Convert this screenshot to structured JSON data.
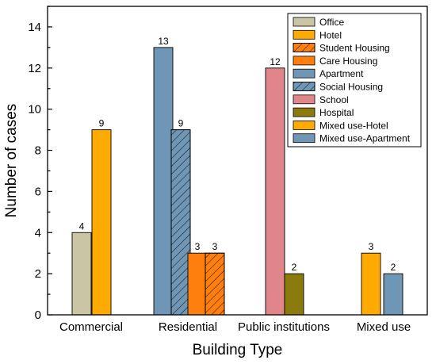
{
  "chart_data": {
    "type": "bar",
    "xlabel": "Building Type",
    "ylabel": "Number of cases",
    "ylim": [
      0,
      15
    ],
    "yticks": [
      0,
      2,
      4,
      6,
      8,
      10,
      12,
      14
    ],
    "grid": false,
    "legend_position": "top-right",
    "categories": [
      "Commercial",
      "Residential",
      "Public institutions",
      "Mixed use"
    ],
    "series": [
      {
        "name": "Office",
        "color": "#c9c5a5",
        "pattern": "solid",
        "points": [
          {
            "category": "Commercial",
            "value": 4
          }
        ]
      },
      {
        "name": "Hotel",
        "color": "#ffaa00",
        "pattern": "solid",
        "points": [
          {
            "category": "Commercial",
            "value": 9
          }
        ]
      },
      {
        "name": "Student Housing",
        "color": "#ff7f0e",
        "pattern": "hatch",
        "points": [
          {
            "category": "Residential",
            "value": 3
          }
        ]
      },
      {
        "name": "Care Housing",
        "color": "#ff7f0e",
        "pattern": "solid",
        "points": [
          {
            "category": "Residential",
            "value": 3
          }
        ]
      },
      {
        "name": "Apartment",
        "color": "#6f96b4",
        "pattern": "solid",
        "points": [
          {
            "category": "Residential",
            "value": 13
          }
        ]
      },
      {
        "name": "Social Housing",
        "color": "#6f96b4",
        "pattern": "hatch",
        "points": [
          {
            "category": "Residential",
            "value": 9
          }
        ]
      },
      {
        "name": "School",
        "color": "#e0868b",
        "pattern": "solid",
        "points": [
          {
            "category": "Public institutions",
            "value": 12
          }
        ]
      },
      {
        "name": "Hospital",
        "color": "#8b7b0f",
        "pattern": "solid",
        "points": [
          {
            "category": "Public institutions",
            "value": 2
          }
        ]
      },
      {
        "name": "Mixed use-Hotel",
        "color": "#ffaa00",
        "pattern": "solid",
        "points": [
          {
            "category": "Mixed use",
            "value": 3
          }
        ]
      },
      {
        "name": "Mixed use-Apartment",
        "color": "#6f96b4",
        "pattern": "solid",
        "points": [
          {
            "category": "Mixed use",
            "value": 2
          }
        ]
      }
    ],
    "bars": [
      {
        "series": "Office",
        "category": "Commercial",
        "value": 4,
        "label": "4"
      },
      {
        "series": "Hotel",
        "category": "Commercial",
        "value": 9,
        "label": "9"
      },
      {
        "series": "Apartment",
        "category": "Residential",
        "value": 13,
        "label": "13"
      },
      {
        "series": "Social Housing",
        "category": "Residential",
        "value": 9,
        "label": "9"
      },
      {
        "series": "Care Housing",
        "category": "Residential",
        "value": 3,
        "label": "3"
      },
      {
        "series": "Student Housing",
        "category": "Residential",
        "value": 3,
        "label": "3"
      },
      {
        "series": "School",
        "category": "Public institutions",
        "value": 12,
        "label": "12"
      },
      {
        "series": "Hospital",
        "category": "Public institutions",
        "value": 2,
        "label": "2"
      },
      {
        "series": "Mixed use-Hotel",
        "category": "Mixed use",
        "value": 3,
        "label": "3"
      },
      {
        "series": "Mixed use-Apartment",
        "category": "Mixed use",
        "value": 2,
        "label": "2"
      }
    ]
  }
}
